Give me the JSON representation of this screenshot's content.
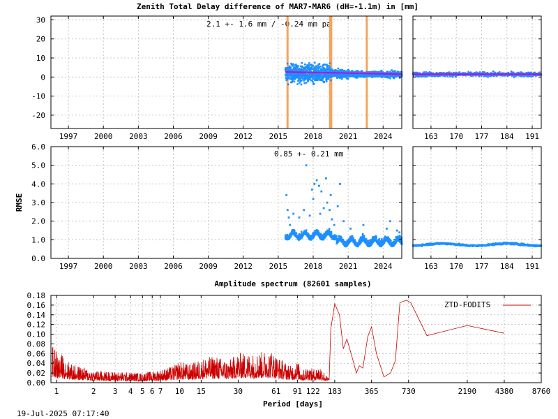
{
  "chart_data": [
    {
      "type": "scatter",
      "title": "Zenith Total Delay difference of MAR7-MAR6 (dH=-1.1m) in [mm]",
      "annotation": "2.1 +-   1.6 mm / -0.24 mm pa",
      "xlim": [
        1995.5,
        2025.6
      ],
      "ylim": [
        -27,
        32
      ],
      "yticks": [
        -20,
        -10,
        0,
        10,
        20,
        30
      ],
      "xticks": [
        1997,
        2000,
        2003,
        2006,
        2009,
        2012,
        2015,
        2018,
        2021,
        2024
      ],
      "grid": true,
      "point_color": "#1e90ff",
      "trend_color": "#d400d4",
      "event_color": "#f4a460",
      "events": [
        2015.8,
        2019.45,
        2019.55,
        2022.6
      ],
      "data_start": 2015.6,
      "data_end": 2025.6,
      "mean": 2.1,
      "trend_mm_per_year": -0.24
    },
    {
      "type": "scatter",
      "xlim": [
        158,
        193.5
      ],
      "ylim": [
        -27,
        32
      ],
      "xticks": [
        163,
        170,
        177,
        184,
        191
      ],
      "grid": true,
      "point_color": "#1e90ff",
      "trend_color": "#d400d4",
      "mean": 1.5
    },
    {
      "type": "scatter",
      "ylabel": "RMSE",
      "annotation": "0.85 +-  0.21 mm",
      "xlim": [
        1995.5,
        2025.6
      ],
      "ylim": [
        0,
        6
      ],
      "yticks": [
        0.0,
        1.0,
        2.0,
        3.0,
        4.0,
        5.0,
        6.0
      ],
      "xticks": [
        1997,
        2000,
        2003,
        2006,
        2009,
        2012,
        2015,
        2018,
        2021,
        2024
      ],
      "grid": true,
      "point_color": "#1e90ff",
      "mean": 0.85,
      "outliers": [
        [
          2015.7,
          3.4
        ],
        [
          2015.8,
          2.6
        ],
        [
          2015.9,
          2.2
        ],
        [
          2016.0,
          1.8
        ],
        [
          2016.3,
          2.4
        ],
        [
          2016.8,
          2.2
        ],
        [
          2017.2,
          2.6
        ],
        [
          2017.4,
          5.0
        ],
        [
          2017.7,
          2.3
        ],
        [
          2017.9,
          3.7
        ],
        [
          2018.0,
          3.2
        ],
        [
          2018.1,
          4.0
        ],
        [
          2018.3,
          4.2
        ],
        [
          2018.5,
          3.9
        ],
        [
          2018.6,
          2.4
        ],
        [
          2018.7,
          3.6
        ],
        [
          2018.9,
          2.7
        ],
        [
          2019.1,
          4.3
        ],
        [
          2019.2,
          3.0
        ],
        [
          2019.4,
          2.6
        ],
        [
          2019.5,
          3.4
        ],
        [
          2019.6,
          2.1
        ],
        [
          2019.8,
          1.8
        ],
        [
          2020.1,
          2.8
        ],
        [
          2020.3,
          4.0
        ],
        [
          2020.6,
          2.0
        ],
        [
          2021.2,
          1.6
        ],
        [
          2022.3,
          1.8
        ],
        [
          2024.3,
          1.6
        ],
        [
          2024.6,
          2.0
        ],
        [
          2025.2,
          1.5
        ],
        [
          2025.4,
          1.4
        ]
      ]
    },
    {
      "type": "scatter",
      "xlim": [
        158,
        193.5
      ],
      "ylim": [
        0,
        6
      ],
      "xticks": [
        163,
        170,
        177,
        184,
        191
      ],
      "grid": true,
      "point_color": "#1e90ff",
      "mean": 0.75
    },
    {
      "type": "line",
      "title": "Amplitude spectrum (82601 samples)",
      "xlabel": "Period [days]",
      "ylim": [
        0,
        0.18
      ],
      "yticks": [
        0.0,
        0.02,
        0.04,
        0.06,
        0.08,
        0.1,
        0.12,
        0.14,
        0.16,
        0.18
      ],
      "xscale": "log",
      "xlim_days": [
        0.9,
        8760
      ],
      "xticks": [
        1,
        2,
        3,
        4,
        5,
        6,
        7,
        10,
        15,
        30,
        61,
        91,
        122,
        183,
        365,
        730,
        2190,
        4380,
        8760
      ],
      "grid": true,
      "series": [
        {
          "name": "ZTD-FODITS",
          "color": "#cc0000",
          "peaks": [
            [
              0.92,
              0.075
            ],
            [
              1.0,
              0.07
            ],
            [
              1.02,
              0.055
            ],
            [
              1.1,
              0.06
            ],
            [
              1.3,
              0.04
            ],
            [
              2.0,
              0.025
            ],
            [
              5.0,
              0.02
            ],
            [
              7.2,
              0.028
            ],
            [
              9.0,
              0.035
            ],
            [
              10.0,
              0.045
            ],
            [
              12.0,
              0.038
            ],
            [
              16.0,
              0.052
            ],
            [
              20.0,
              0.055
            ],
            [
              25.0,
              0.045
            ],
            [
              30.0,
              0.062
            ],
            [
              40.0,
              0.06
            ],
            [
              55.0,
              0.068
            ],
            [
              62.0,
              0.055
            ],
            [
              80.0,
              0.035
            ],
            [
              91.0,
              0.045
            ],
            [
              100.0,
              0.025
            ],
            [
              110.0,
              0.035
            ],
            [
              122.0,
              0.028
            ],
            [
              140.0,
              0.035
            ],
            [
              160.0,
              0.012
            ]
          ],
          "tail": [
            [
              170.0,
              0.11
            ],
            [
              183.0,
              0.163
            ],
            [
              200.0,
              0.14
            ],
            [
              215.0,
              0.07
            ],
            [
              230.0,
              0.09
            ],
            [
              255.0,
              0.05
            ],
            [
              275.0,
              0.02
            ],
            [
              290.0,
              0.035
            ],
            [
              310.0,
              0.03
            ],
            [
              340.0,
              0.095
            ],
            [
              365.0,
              0.115
            ],
            [
              400.0,
              0.06
            ],
            [
              460.0,
              0.012
            ],
            [
              520.0,
              0.02
            ],
            [
              570.0,
              0.045
            ],
            [
              620.0,
              0.165
            ],
            [
              700.0,
              0.17
            ],
            [
              760.0,
              0.165
            ],
            [
              1030.0,
              0.097
            ],
            [
              2190.0,
              0.118
            ],
            [
              4380.0,
              0.102
            ]
          ]
        }
      ]
    }
  ],
  "footer": {
    "timestamp": "19-Jul-2025 07:17:40"
  }
}
